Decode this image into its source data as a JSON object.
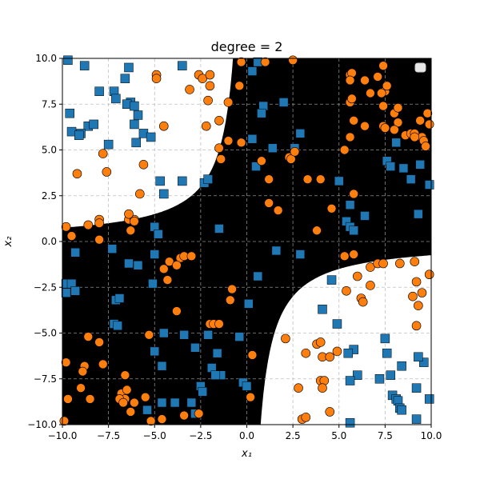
{
  "chart_data": {
    "type": "scatter",
    "title": "degree $=2$",
    "title_display": "degree  = 2",
    "xlabel": "x₁",
    "ylabel": "x₂",
    "xlim": [
      -10,
      10
    ],
    "ylim": [
      -10,
      10
    ],
    "xticks": [
      -10,
      -7.5,
      -5,
      -2.5,
      0,
      2.5,
      5,
      7.5,
      10
    ],
    "yticks": [
      -10,
      -7.5,
      -5,
      -2.5,
      0,
      2.5,
      5,
      7.5,
      10
    ],
    "xtick_labels": [
      "−10.0",
      "−7.5",
      "−5.0",
      "−2.5",
      "0.0",
      "2.5",
      "5.0",
      "7.5",
      "10.0"
    ],
    "ytick_labels": [
      "−10.0",
      "−7.5",
      "−5.0",
      "−2.5",
      "0.0",
      "2.5",
      "5.0",
      "7.5",
      "10.0"
    ],
    "grid": true,
    "legend_position": "top-right",
    "background_regions": {
      "description": "decision regions of a degree-2 polynomial classifier, boundary x1*x2 = c",
      "black_fill": "#000000",
      "white_fill": "#ffffff",
      "boundary_constant": 7.5
    },
    "colors": {
      "square": "#1f77b4",
      "circle": "#ff7f0e"
    },
    "series": [
      {
        "marker": "square",
        "color": "#1f77b4",
        "points": [
          [
            -9.7,
            9.9
          ],
          [
            -8.8,
            9.6
          ],
          [
            -6.4,
            9.5
          ],
          [
            -6.6,
            8.9
          ],
          [
            -3.5,
            9.6
          ],
          [
            -8,
            8.2
          ],
          [
            -7.2,
            8.2
          ],
          [
            -7.1,
            7.8
          ],
          [
            -6.3,
            7.6
          ],
          [
            -9.6,
            7
          ],
          [
            -8.6,
            6.3
          ],
          [
            -8.3,
            6.4
          ],
          [
            -7.5,
            5.3
          ],
          [
            -9.5,
            6
          ],
          [
            -9,
            5.9
          ],
          [
            -9.1,
            5.8
          ],
          [
            -6.5,
            7.5
          ],
          [
            -6.1,
            7.4
          ],
          [
            -5.9,
            6.9
          ],
          [
            -6.1,
            6.4
          ],
          [
            -5.6,
            5.9
          ],
          [
            -5.2,
            5.7
          ],
          [
            -6,
            5.4
          ],
          [
            -4.7,
            3.3
          ],
          [
            -4.5,
            2.6
          ],
          [
            -3.5,
            3.3
          ],
          [
            -5,
            0.8
          ],
          [
            -4.8,
            0.4
          ],
          [
            -7.3,
            -0.4
          ],
          [
            -9.3,
            -0.6
          ],
          [
            -5,
            -0.7
          ],
          [
            -2.3,
            3.2
          ],
          [
            -2.1,
            3.4
          ],
          [
            -1.5,
            0.7
          ],
          [
            -6.4,
            -1.2
          ],
          [
            -5.9,
            -1.3
          ],
          [
            -5.1,
            -2.3
          ],
          [
            -9.8,
            -2.3
          ],
          [
            -9.5,
            -2.3
          ],
          [
            -9.8,
            -2.8
          ],
          [
            -9.3,
            -2.7
          ],
          [
            -7.1,
            -3.2
          ],
          [
            -6.9,
            -3.1
          ],
          [
            -7.2,
            -4.5
          ],
          [
            -7,
            -4.6
          ],
          [
            -4.5,
            -5
          ],
          [
            -5,
            -6
          ],
          [
            -4.6,
            -6.8
          ],
          [
            -3.4,
            -5.1
          ],
          [
            -2.8,
            -5.8
          ],
          [
            -2.1,
            -5.1
          ],
          [
            -1.6,
            -6.1
          ],
          [
            -1.9,
            -6.9
          ],
          [
            -1.4,
            -7.3
          ],
          [
            -1.7,
            -7.3
          ],
          [
            -0.4,
            -5.2
          ],
          [
            -2.5,
            -7.9
          ],
          [
            -2.4,
            -8.2
          ],
          [
            -4.6,
            -8.8
          ],
          [
            -3.9,
            -8.8
          ],
          [
            -3,
            -8.8
          ],
          [
            -2.8,
            -9.4
          ],
          [
            -5.4,
            -9.2
          ],
          [
            -0.2,
            -7.7
          ],
          [
            0,
            -7.9
          ],
          [
            0.1,
            -3.4
          ],
          [
            0.6,
            -1.9
          ],
          [
            1.6,
            -0.5
          ],
          [
            2.9,
            -0.7
          ],
          [
            4.6,
            -2.1
          ],
          [
            4.1,
            -3.7
          ],
          [
            4.9,
            -4.5
          ],
          [
            5.8,
            -5.9
          ],
          [
            5.5,
            -6.1
          ],
          [
            6,
            -7.3
          ],
          [
            5.6,
            -7.6
          ],
          [
            5.6,
            -9.9
          ],
          [
            7.5,
            -5.3
          ],
          [
            7.6,
            -6.1
          ],
          [
            8.4,
            -6.8
          ],
          [
            7.2,
            -7.5
          ],
          [
            7.8,
            -7.3
          ],
          [
            7.9,
            -8.4
          ],
          [
            8.1,
            -8.6
          ],
          [
            8.2,
            -8.7
          ],
          [
            8.3,
            -9.1
          ],
          [
            8.4,
            -9.2
          ],
          [
            9.2,
            -8
          ],
          [
            9.2,
            -9.7
          ],
          [
            9.6,
            -6.6
          ],
          [
            9.3,
            -6.3
          ],
          [
            9.9,
            -8.6
          ],
          [
            0.6,
            9.8
          ],
          [
            0.3,
            9.3
          ],
          [
            0.9,
            7.4
          ],
          [
            0.8,
            7.0
          ],
          [
            1.4,
            5.1
          ],
          [
            2.0,
            7.6
          ],
          [
            2.9,
            5.9
          ],
          [
            2.6,
            5.1
          ],
          [
            0.3,
            5.6
          ],
          [
            0.5,
            4.1
          ],
          [
            5.0,
            3.3
          ],
          [
            5.4,
            1.1
          ],
          [
            5.6,
            0.8
          ],
          [
            5.8,
            0.6
          ],
          [
            5.6,
            2.0
          ],
          [
            6.4,
            1.4
          ],
          [
            7.6,
            4.4
          ],
          [
            7.8,
            4.1
          ],
          [
            8.5,
            4.0
          ],
          [
            8.9,
            3.4
          ],
          [
            9.4,
            4.2
          ],
          [
            9.9,
            3.1
          ],
          [
            9.3,
            1.5
          ],
          [
            8.1,
            5.4
          ]
        ]
      },
      {
        "marker": "circle",
        "color": "#ff7f0e",
        "points": [
          [
            -4.9,
            9.1
          ],
          [
            -4.9,
            8.9
          ],
          [
            -2.6,
            9.1
          ],
          [
            -2.4,
            8.9
          ],
          [
            -2.0,
            9.1
          ],
          [
            -2.0,
            8.5
          ],
          [
            -3.1,
            8.3
          ],
          [
            -2.1,
            7.7
          ],
          [
            -2.2,
            6.3
          ],
          [
            -1.5,
            6.6
          ],
          [
            -4.5,
            6.3
          ],
          [
            -5.6,
            4.2
          ],
          [
            -5.8,
            2.6
          ],
          [
            -9.2,
            3.7
          ],
          [
            -7.8,
            4.8
          ],
          [
            -7.6,
            3.8
          ],
          [
            -8.0,
            1.2
          ],
          [
            -8.0,
            1.0
          ],
          [
            -8.6,
            0.9
          ],
          [
            -9.8,
            0.8
          ],
          [
            -9.5,
            0.3
          ],
          [
            -8.0,
            0.1
          ],
          [
            -6.4,
            1.2
          ],
          [
            -6.3,
            0.6
          ],
          [
            -6.1,
            1.2
          ],
          [
            -6.4,
            1.5
          ],
          [
            -6.1,
            1.1
          ],
          [
            -4.2,
            -1.1
          ],
          [
            -3.6,
            -0.9
          ],
          [
            -3.4,
            -0.8
          ],
          [
            -3.8,
            -1.3
          ],
          [
            -3.0,
            -0.8
          ],
          [
            -4.5,
            -1.5
          ],
          [
            -4.3,
            -2.1
          ],
          [
            -0.8,
            -2.6
          ],
          [
            -0.9,
            -3.2
          ],
          [
            -3.8,
            -3.8
          ],
          [
            -2.0,
            -4.5
          ],
          [
            -1.8,
            -4.5
          ],
          [
            -1.5,
            -4.5
          ],
          [
            -5.3,
            -5.1
          ],
          [
            -8.6,
            -5.2
          ],
          [
            -8.0,
            -5.5
          ],
          [
            -8.8,
            -6.8
          ],
          [
            -8.9,
            -7.1
          ],
          [
            -7.8,
            -6.7
          ],
          [
            -6.6,
            -7.3
          ],
          [
            -6.8,
            -8.3
          ],
          [
            -6.5,
            -8.1
          ],
          [
            -6.6,
            -8.6
          ],
          [
            -6.3,
            -9.3
          ],
          [
            -6.9,
            -8.6
          ],
          [
            -6.7,
            -8.8
          ],
          [
            -6.1,
            -8.8
          ],
          [
            -5.5,
            -8.5
          ],
          [
            -9.8,
            -6.6
          ],
          [
            -9.9,
            -9.8
          ],
          [
            -9.7,
            -8.6
          ],
          [
            -8.5,
            -8.6
          ],
          [
            -9.0,
            -8.0
          ],
          [
            -5.2,
            -9.8
          ],
          [
            -4.6,
            -9.7
          ],
          [
            -3.4,
            -9.5
          ],
          [
            -2.6,
            -9.4
          ],
          [
            -0.3,
            9.8
          ],
          [
            -0.3,
            5.4
          ],
          [
            -1.0,
            5.5
          ],
          [
            -1.0,
            7.6
          ],
          [
            -1.5,
            5.1
          ],
          [
            -1.4,
            4.5
          ],
          [
            -0.4,
            8.5
          ],
          [
            1.0,
            9.8
          ],
          [
            0.8,
            4.4
          ],
          [
            1.2,
            3.4
          ],
          [
            1.2,
            2.1
          ],
          [
            1.7,
            1.7
          ],
          [
            2.3,
            4.6
          ],
          [
            2.4,
            4.5
          ],
          [
            2.6,
            4.9
          ],
          [
            3.3,
            3.4
          ],
          [
            4.0,
            3.4
          ],
          [
            3.8,
            0.6
          ],
          [
            4.6,
            1.8
          ],
          [
            5.8,
            2.6
          ],
          [
            5.3,
            5.0
          ],
          [
            5.6,
            9.1
          ],
          [
            5.7,
            9.2
          ],
          [
            5.6,
            8.8
          ],
          [
            5.6,
            7.6
          ],
          [
            5.7,
            7.8
          ],
          [
            5.8,
            6.6
          ],
          [
            5.6,
            5.7
          ],
          [
            6.4,
            8.8
          ],
          [
            7.1,
            9.0
          ],
          [
            7.5,
            8.2
          ],
          [
            7.3,
            8.1
          ],
          [
            6.7,
            8.1
          ],
          [
            7.6,
            8.5
          ],
          [
            7.4,
            7.4
          ],
          [
            8.0,
            7.0
          ],
          [
            8.2,
            6.5
          ],
          [
            8.0,
            6.1
          ],
          [
            7.4,
            6.3
          ],
          [
            7.5,
            6.2
          ],
          [
            6.4,
            6.3
          ],
          [
            8.2,
            7.3
          ],
          [
            8.6,
            5.8
          ],
          [
            8.9,
            5.9
          ],
          [
            9.1,
            5.9
          ],
          [
            9.5,
            5.7
          ],
          [
            9.6,
            5.5
          ],
          [
            9.7,
            5.2
          ],
          [
            9.9,
            6.4
          ],
          [
            9.4,
            6.6
          ],
          [
            9.1,
            5.7
          ],
          [
            9.8,
            7.0
          ],
          [
            2.5,
            9.9
          ],
          [
            7.4,
            9.6
          ],
          [
            5.3,
            -0.8
          ],
          [
            5.8,
            -0.7
          ],
          [
            6.7,
            -1.4
          ],
          [
            6.0,
            -1.9
          ],
          [
            6.7,
            -2.4
          ],
          [
            7.1,
            -1.2
          ],
          [
            5.4,
            -2.7
          ],
          [
            6.2,
            -3.1
          ],
          [
            6.3,
            -3.3
          ],
          [
            7.4,
            -1.2
          ],
          [
            8.3,
            -1.2
          ],
          [
            9.1,
            -1.1
          ],
          [
            9.2,
            -2.2
          ],
          [
            9.5,
            -2.8
          ],
          [
            9.0,
            -3.0
          ],
          [
            9.3,
            -3.5
          ],
          [
            9.2,
            -4.6
          ],
          [
            9.9,
            -1.8
          ],
          [
            2.1,
            -5.3
          ],
          [
            3.2,
            -6.1
          ],
          [
            3.8,
            -5.6
          ],
          [
            4.0,
            -5.5
          ],
          [
            4.1,
            -6.3
          ],
          [
            4.5,
            -6.3
          ],
          [
            4.9,
            -6.0
          ],
          [
            4.0,
            -7.6
          ],
          [
            4.2,
            -7.6
          ],
          [
            4.1,
            -8.0
          ],
          [
            2.8,
            -8.0
          ],
          [
            3.0,
            -9.7
          ],
          [
            3.2,
            -9.6
          ],
          [
            4.5,
            -9.3
          ],
          [
            0.3,
            -6.2
          ],
          [
            0.2,
            -8.5
          ]
        ]
      }
    ]
  }
}
